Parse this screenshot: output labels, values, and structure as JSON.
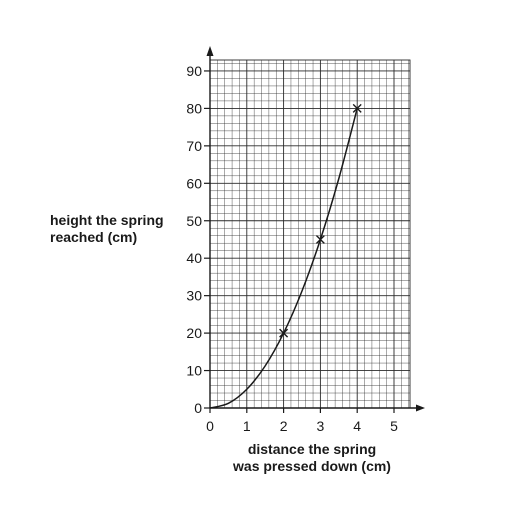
{
  "chart_data": {
    "type": "line",
    "xlabel": [
      "distance the spring",
      "was pressed down (cm)"
    ],
    "ylabel": [
      "height the spring",
      "reached (cm)"
    ],
    "xlim": [
      0,
      5.5
    ],
    "ylim": [
      0,
      93
    ],
    "x_ticks": [
      "0",
      "1",
      "2",
      "3",
      "4",
      "5"
    ],
    "y_ticks": [
      "0",
      "10",
      "20",
      "30",
      "40",
      "50",
      "60",
      "70",
      "80",
      "90"
    ],
    "grid": true,
    "series": [
      {
        "marker": "x",
        "points": [
          {
            "x": 2,
            "y": 20
          },
          {
            "x": 3,
            "y": 45
          },
          {
            "x": 4,
            "y": 80
          }
        ],
        "curve": [
          {
            "x": 0,
            "y": 0
          },
          {
            "x": 0.5,
            "y": 1.25
          },
          {
            "x": 1,
            "y": 5
          },
          {
            "x": 1.5,
            "y": 11.25
          },
          {
            "x": 2,
            "y": 20
          },
          {
            "x": 2.5,
            "y": 31.25
          },
          {
            "x": 3,
            "y": 45
          },
          {
            "x": 3.5,
            "y": 61.25
          },
          {
            "x": 4,
            "y": 80
          }
        ]
      }
    ],
    "colors": {
      "ink": "#1a1a1a",
      "grid": "#2a2a2a"
    }
  }
}
